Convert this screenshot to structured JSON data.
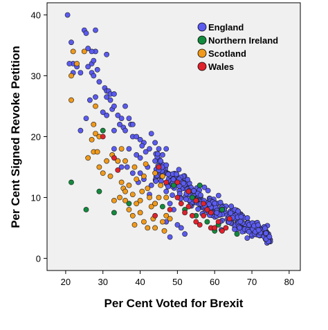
{
  "chart_data": {
    "type": "scatter",
    "xlabel": "Per Cent Voted for Brexit",
    "ylabel": "Per Cent Signed Revoke Petition",
    "xlim": [
      15,
      83
    ],
    "ylim": [
      -2,
      42
    ],
    "x_ticks": [
      20,
      30,
      40,
      50,
      60,
      70,
      80
    ],
    "y_ticks": [
      0,
      10,
      20,
      30,
      40
    ],
    "grid": false,
    "legend_position": "top-right",
    "plot_background": "#f0f0f0",
    "series": [
      {
        "name": "England",
        "color": "#5b5bf0",
        "cluster": {
          "count": 360,
          "x_range": [
            44,
            75
          ],
          "trend": [
            [
              44,
              15
            ],
            [
              55,
              10
            ],
            [
              65,
              6.5
            ],
            [
              75,
              3.5
            ]
          ],
          "spread": 2.2
        },
        "points": [
          [
            20.5,
            40
          ],
          [
            21.5,
            35.5
          ],
          [
            22,
            32
          ],
          [
            21,
            32
          ],
          [
            23,
            31.5
          ],
          [
            22,
            30.5
          ],
          [
            24,
            30.5
          ],
          [
            25,
            37.5
          ],
          [
            25.5,
            37
          ],
          [
            28,
            37.5
          ],
          [
            26,
            31.5
          ],
          [
            27,
            32
          ],
          [
            27.5,
            32.5
          ],
          [
            27,
            30.5
          ],
          [
            27.5,
            30
          ],
          [
            28.5,
            31
          ],
          [
            28,
            34
          ],
          [
            27,
            34
          ],
          [
            26,
            34.5
          ],
          [
            31,
            33.5
          ],
          [
            29,
            29
          ],
          [
            30.5,
            28
          ],
          [
            31,
            27.5
          ],
          [
            31.5,
            27.5
          ],
          [
            32,
            27
          ],
          [
            31,
            26.5
          ],
          [
            32,
            26
          ],
          [
            33,
            27
          ],
          [
            32.5,
            24.5
          ],
          [
            33,
            25
          ],
          [
            34,
            23.5
          ],
          [
            35,
            23
          ],
          [
            37,
            23
          ],
          [
            36,
            25
          ],
          [
            30,
            24
          ],
          [
            31,
            23.5
          ],
          [
            33,
            21
          ],
          [
            35.5,
            21.5
          ],
          [
            37.5,
            22
          ],
          [
            38,
            22
          ],
          [
            36,
            21
          ],
          [
            38,
            20
          ],
          [
            39,
            20
          ],
          [
            40,
            19.5
          ],
          [
            41,
            19
          ],
          [
            40.5,
            18.5
          ],
          [
            41.5,
            17.5
          ],
          [
            42.5,
            18
          ],
          [
            43,
            20.5
          ],
          [
            44,
            19
          ],
          [
            45,
            18
          ],
          [
            46,
            17
          ],
          [
            47,
            18
          ],
          [
            45.5,
            16
          ],
          [
            44,
            16
          ],
          [
            39,
            17
          ],
          [
            40,
            16.5
          ],
          [
            37,
            18
          ],
          [
            36.5,
            15
          ],
          [
            38,
            14
          ],
          [
            40,
            14
          ],
          [
            41,
            13
          ],
          [
            42,
            15
          ],
          [
            43,
            12
          ],
          [
            42.5,
            10.5
          ],
          [
            39.5,
            12.5
          ],
          [
            24,
            21
          ],
          [
            26.5,
            26
          ],
          [
            28,
            26.5
          ],
          [
            34.5,
            22
          ],
          [
            25.5,
            23
          ],
          [
            33,
            18
          ],
          [
            34,
            16
          ],
          [
            35,
            15
          ],
          [
            45,
            14.5
          ],
          [
            46,
            13.5
          ],
          [
            47,
            11
          ],
          [
            48,
            9
          ],
          [
            49,
            8
          ],
          [
            50,
            5.5
          ],
          [
            51,
            5
          ],
          [
            52,
            4
          ],
          [
            48,
            3.5
          ],
          [
            47,
            6
          ]
        ]
      },
      {
        "name": "Northern Ireland",
        "color": "#138a3d",
        "points": [
          [
            21.5,
            12.5
          ],
          [
            25.5,
            8
          ],
          [
            29,
            11
          ],
          [
            30,
            21
          ],
          [
            33,
            7.5
          ],
          [
            37,
            9
          ],
          [
            44,
            9
          ],
          [
            46,
            8.5
          ],
          [
            49,
            12
          ],
          [
            52,
            8
          ],
          [
            54,
            10
          ],
          [
            55,
            7
          ],
          [
            56,
            12
          ],
          [
            58,
            6
          ],
          [
            60,
            4.5
          ],
          [
            61,
            5.5
          ],
          [
            62,
            8
          ],
          [
            66,
            4
          ]
        ]
      },
      {
        "name": "Scotland",
        "color": "#f0991b",
        "points": [
          [
            21.5,
            30
          ],
          [
            22,
            34
          ],
          [
            23,
            32
          ],
          [
            21.5,
            26
          ],
          [
            25,
            34
          ],
          [
            28,
            25
          ],
          [
            27.5,
            22
          ],
          [
            28,
            20.5
          ],
          [
            29,
            20
          ],
          [
            27,
            19.5
          ],
          [
            27.5,
            17.5
          ],
          [
            28.5,
            17.5
          ],
          [
            26,
            16.5
          ],
          [
            29,
            15
          ],
          [
            31,
            16
          ],
          [
            30,
            14
          ],
          [
            32,
            13.5
          ],
          [
            32.5,
            17
          ],
          [
            34,
            16
          ],
          [
            35,
            12.5
          ],
          [
            35.5,
            11.5
          ],
          [
            36,
            9.5
          ],
          [
            37,
            8
          ],
          [
            38,
            7
          ],
          [
            38.5,
            5.5
          ],
          [
            39,
            9
          ],
          [
            40,
            9.5
          ],
          [
            40.5,
            11
          ],
          [
            41,
            13.5
          ],
          [
            42,
            11.5
          ],
          [
            42.5,
            10
          ],
          [
            43,
            8.5
          ],
          [
            44,
            9
          ],
          [
            45,
            10
          ],
          [
            45.5,
            12
          ],
          [
            46,
            13.5
          ],
          [
            47,
            10
          ],
          [
            43.5,
            6.5
          ],
          [
            44,
            5
          ],
          [
            46,
            6
          ],
          [
            46.5,
            4.5
          ],
          [
            47,
            7
          ],
          [
            36,
            11
          ],
          [
            37,
            12
          ],
          [
            39,
            13
          ],
          [
            38,
            10.5
          ],
          [
            34.5,
            10
          ],
          [
            33,
            9.5
          ],
          [
            40,
            7.5
          ],
          [
            41,
            6
          ],
          [
            42,
            5
          ],
          [
            48,
            6.5
          ],
          [
            44,
            14
          ],
          [
            41.5,
            15.5
          ],
          [
            38.5,
            15
          ],
          [
            36,
            16
          ],
          [
            35,
            18
          ]
        ]
      },
      {
        "name": "Wales",
        "color": "#e0222d",
        "points": [
          [
            30,
            20
          ],
          [
            33,
            16.5
          ],
          [
            34,
            14.5
          ],
          [
            45,
            15
          ],
          [
            47,
            12.5
          ],
          [
            50,
            10
          ],
          [
            51,
            9
          ],
          [
            52,
            7.5
          ],
          [
            53,
            8.5
          ],
          [
            54,
            7
          ],
          [
            55,
            6
          ],
          [
            56,
            5.5
          ],
          [
            57,
            9
          ],
          [
            58,
            8
          ],
          [
            59,
            5
          ],
          [
            60,
            5
          ],
          [
            61,
            6
          ],
          [
            62,
            4.5
          ],
          [
            63,
            5
          ],
          [
            64,
            6.5
          ],
          [
            50,
            12.5
          ],
          [
            53,
            11
          ],
          [
            55,
            9.5
          ],
          [
            57,
            7
          ],
          [
            59,
            7.5
          ],
          [
            44,
            7
          ],
          [
            48,
            8
          ]
        ]
      }
    ]
  }
}
